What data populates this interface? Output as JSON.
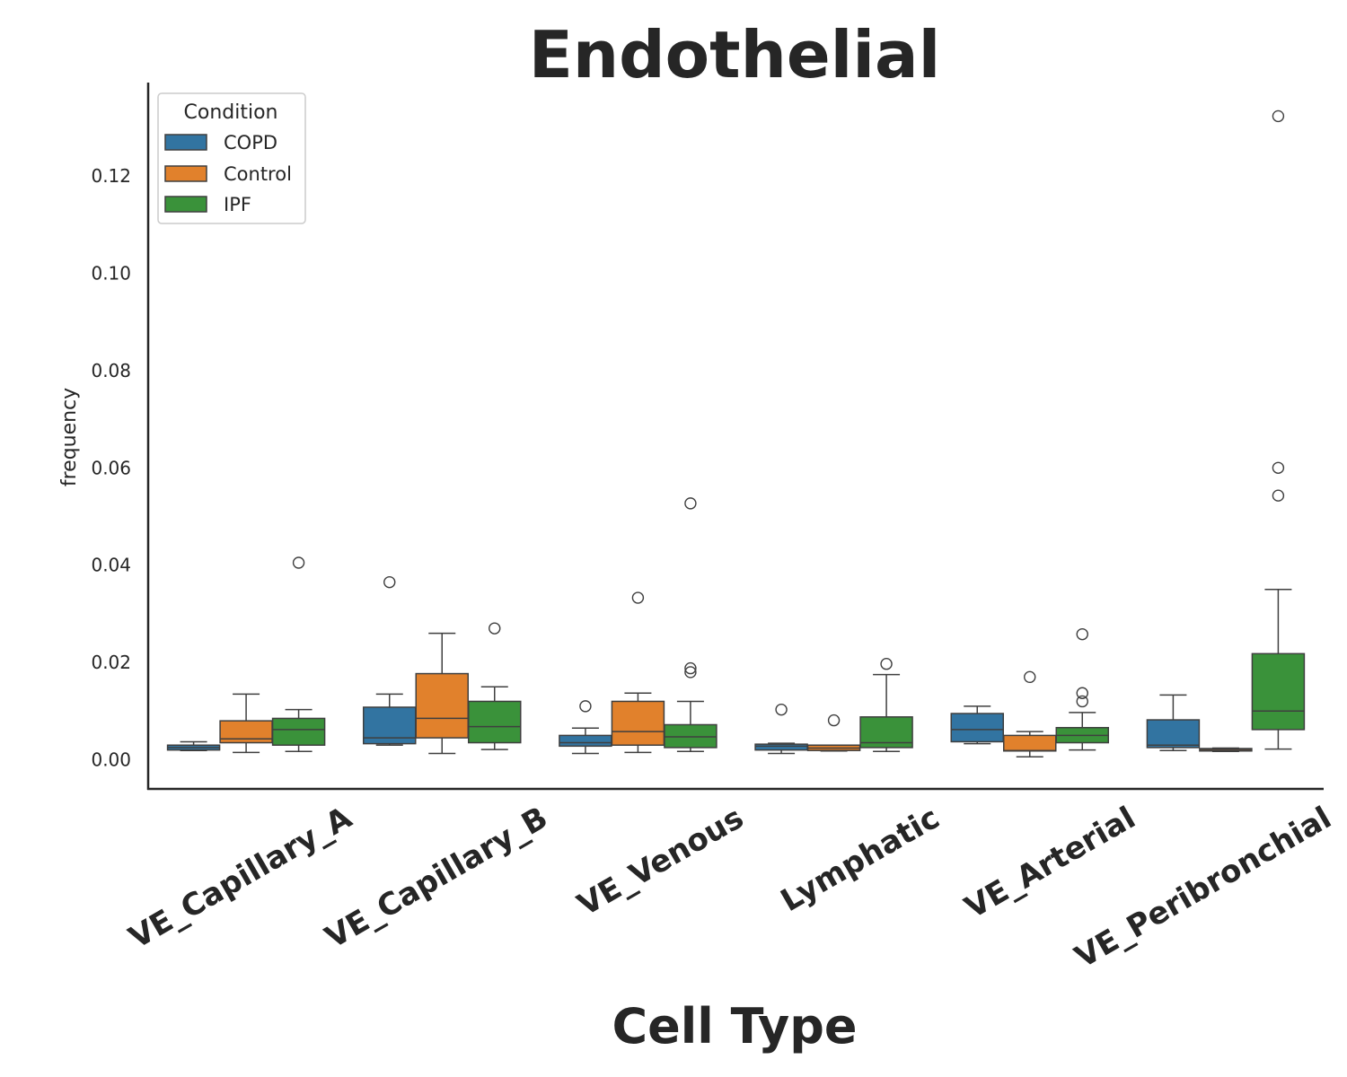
{
  "chart_data": {
    "type": "boxplot",
    "title": "Endothelial",
    "xlabel": "Cell Type",
    "ylabel": "frequency",
    "ylim": [
      -0.006,
      0.139
    ],
    "yticks": [
      "0.00",
      "0.02",
      "0.04",
      "0.06",
      "0.08",
      "0.10",
      "0.12"
    ],
    "ytick_values": [
      0.0,
      0.02,
      0.04,
      0.06,
      0.08,
      0.1,
      0.12
    ],
    "categories": [
      "VE_Capillary_A",
      "VE_Capillary_B",
      "VE_Venous",
      "Lymphatic",
      "VE_Arterial",
      "VE_Peribronchial"
    ],
    "grid": false,
    "legend": {
      "title": "Condition",
      "placement": "upper-left",
      "entries": [
        "COPD",
        "Control",
        "IPF"
      ]
    },
    "series": [
      {
        "name": "COPD",
        "color": "#3274a1",
        "boxes": [
          {
            "whislo": 0.0019,
            "q1": 0.002,
            "med": 0.0025,
            "q3": 0.003,
            "whishi": 0.0037,
            "fliers": []
          },
          {
            "whislo": 0.003,
            "q1": 0.0033,
            "med": 0.0045,
            "q3": 0.0108,
            "whishi": 0.0135,
            "fliers": [
              0.0365
            ]
          },
          {
            "whislo": 0.0013,
            "q1": 0.0028,
            "med": 0.0035,
            "q3": 0.005,
            "whishi": 0.0065,
            "fliers": [
              0.011
            ]
          },
          {
            "whislo": 0.0013,
            "q1": 0.002,
            "med": 0.0028,
            "q3": 0.0032,
            "whishi": 0.0034,
            "fliers": [
              0.0103
            ]
          },
          {
            "whislo": 0.0033,
            "q1": 0.0037,
            "med": 0.0062,
            "q3": 0.0095,
            "whishi": 0.011,
            "fliers": []
          },
          {
            "whislo": 0.0019,
            "q1": 0.0025,
            "med": 0.003,
            "q3": 0.0082,
            "whishi": 0.0133,
            "fliers": []
          }
        ]
      },
      {
        "name": "Control",
        "color": "#e1812c",
        "boxes": [
          {
            "whislo": 0.0015,
            "q1": 0.0035,
            "med": 0.0043,
            "q3": 0.008,
            "whishi": 0.0135,
            "fliers": []
          },
          {
            "whislo": 0.0013,
            "q1": 0.0045,
            "med": 0.0085,
            "q3": 0.0177,
            "whishi": 0.026,
            "fliers": []
          },
          {
            "whislo": 0.0015,
            "q1": 0.003,
            "med": 0.0058,
            "q3": 0.012,
            "whishi": 0.0137,
            "fliers": [
              0.0333
            ]
          },
          {
            "whislo": 0.0018,
            "q1": 0.0019,
            "med": 0.0024,
            "q3": 0.003,
            "whishi": 0.003,
            "fliers": [
              0.0081
            ]
          },
          {
            "whislo": 0.0006,
            "q1": 0.0018,
            "med": 0.0019,
            "q3": 0.005,
            "whishi": 0.0058,
            "fliers": [
              0.017
            ]
          },
          {
            "whislo": 0.0017,
            "q1": 0.0018,
            "med": 0.0021,
            "q3": 0.0023,
            "whishi": 0.0024,
            "fliers": []
          }
        ]
      },
      {
        "name": "IPF",
        "color": "#3a923a",
        "boxes": [
          {
            "whislo": 0.0017,
            "q1": 0.003,
            "med": 0.0062,
            "q3": 0.0085,
            "whishi": 0.0103,
            "fliers": [
              0.0405
            ]
          },
          {
            "whislo": 0.0021,
            "q1": 0.0035,
            "med": 0.0068,
            "q3": 0.012,
            "whishi": 0.015,
            "fliers": [
              0.027
            ]
          },
          {
            "whislo": 0.0017,
            "q1": 0.0025,
            "med": 0.0047,
            "q3": 0.0072,
            "whishi": 0.012,
            "fliers": [
              0.0527,
              0.0188,
              0.018
            ]
          },
          {
            "whislo": 0.0017,
            "q1": 0.0025,
            "med": 0.0035,
            "q3": 0.0088,
            "whishi": 0.0175,
            "fliers": [
              0.0197
            ]
          },
          {
            "whislo": 0.002,
            "q1": 0.0035,
            "med": 0.005,
            "q3": 0.0066,
            "whishi": 0.0097,
            "fliers": [
              0.0258,
              0.0137,
              0.012
            ]
          },
          {
            "whislo": 0.0022,
            "q1": 0.0062,
            "med": 0.01,
            "q3": 0.0218,
            "whishi": 0.035,
            "fliers": [
              0.1323,
              0.06,
              0.0543
            ]
          }
        ]
      }
    ]
  }
}
